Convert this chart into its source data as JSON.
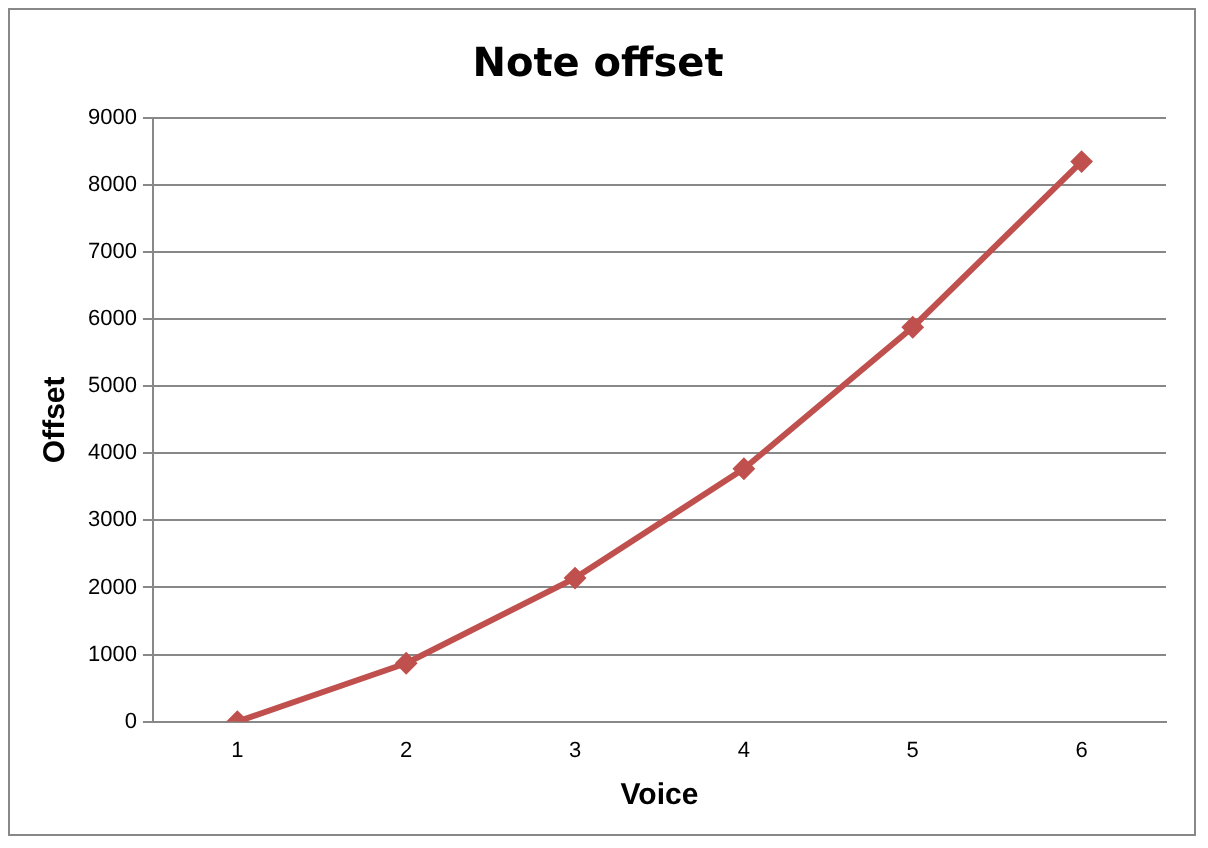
{
  "chart_data": {
    "type": "line",
    "title": "Note offset",
    "xlabel": "Voice",
    "ylabel": "Offset",
    "categories": [
      "1",
      "2",
      "3",
      "4",
      "5",
      "6"
    ],
    "series": [
      {
        "color": "#c0504d",
        "values": [
          0,
          870,
          2140,
          3770,
          5880,
          8350
        ]
      }
    ],
    "ylim": [
      0,
      9000
    ],
    "yticks": [
      0,
      1000,
      2000,
      3000,
      4000,
      5000,
      6000,
      7000,
      8000,
      9000
    ],
    "grid": "y",
    "legend": false,
    "marker": "diamond",
    "line_style": "solid"
  }
}
